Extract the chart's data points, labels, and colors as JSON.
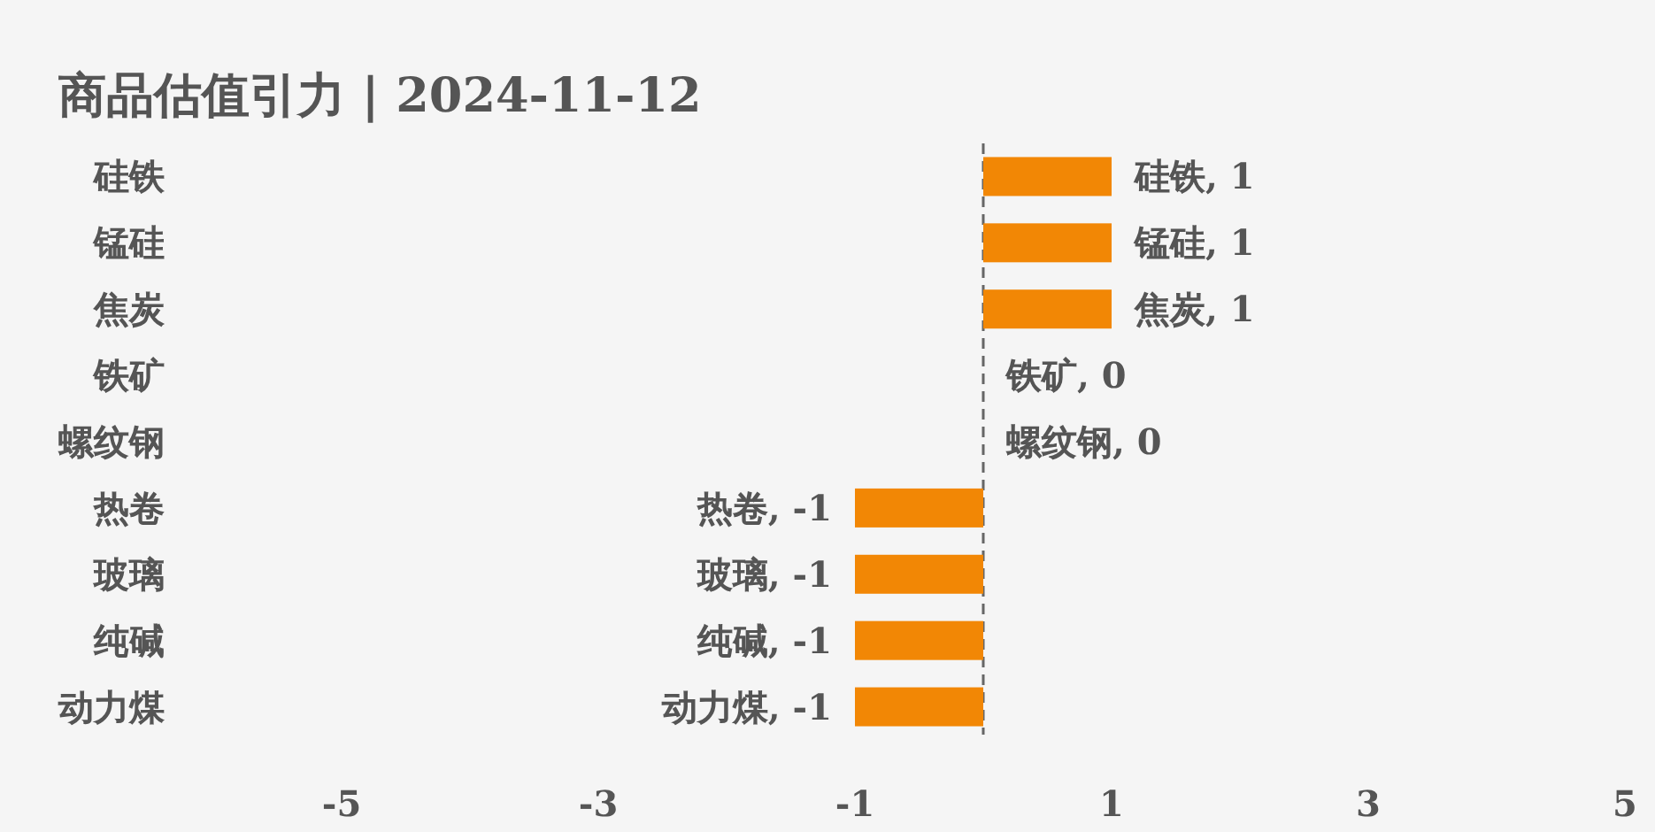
{
  "chart_data": {
    "type": "bar",
    "orientation": "horizontal",
    "title": "商品估值引力 | 2024-11-12",
    "categories": [
      "硅铁",
      "锰硅",
      "焦炭",
      "铁矿",
      "螺纹钢",
      "热卷",
      "玻璃",
      "纯碱",
      "动力煤"
    ],
    "values": [
      1,
      1,
      1,
      0,
      0,
      -1,
      -1,
      -1,
      -1
    ],
    "color": "#f28705",
    "value_labels": [
      "硅铁, 1",
      "锰硅, 1",
      "焦炭, 1",
      "铁矿, 0",
      "螺纹钢, 0",
      "热卷, -1",
      "玻璃, -1",
      "纯碱, -1",
      "动力煤, -1"
    ],
    "xlim": [
      -5,
      5
    ],
    "xticks": [
      -5,
      -3,
      -1,
      1,
      3,
      5
    ],
    "ref_lines": [
      {
        "axis": "x",
        "value": 0,
        "color": "#666666",
        "line_style": "dashed"
      }
    ]
  }
}
